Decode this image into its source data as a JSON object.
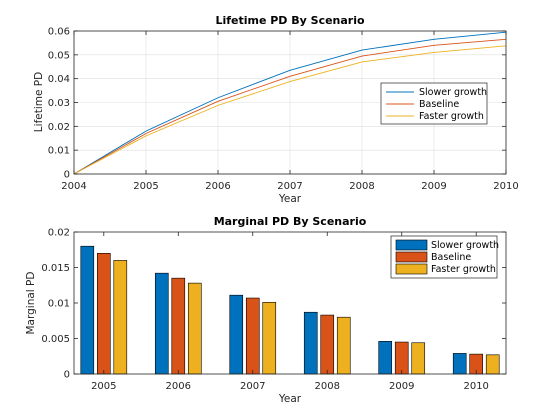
{
  "chart_data": [
    {
      "type": "line",
      "title": "Lifetime PD By Scenario",
      "xlabel": "Year",
      "ylabel": "Lifetime PD",
      "xlim": [
        2004,
        2010
      ],
      "ylim": [
        0,
        0.06
      ],
      "xticks": [
        "2004",
        "2005",
        "2006",
        "2007",
        "2008",
        "2009",
        "2010"
      ],
      "yticks": [
        "0",
        "0.01",
        "0.02",
        "0.03",
        "0.04",
        "0.05",
        "0.06"
      ],
      "grid": true,
      "legend_position": "right-center",
      "x": [
        2004,
        2005,
        2006,
        2007,
        2008,
        2009,
        2010
      ],
      "series": [
        {
          "name": "Slower growth",
          "color": "#0072BD",
          "values": [
            0,
            0.018,
            0.032,
            0.0435,
            0.052,
            0.0565,
            0.0595
          ]
        },
        {
          "name": "Baseline",
          "color": "#D95319",
          "values": [
            0,
            0.017,
            0.0305,
            0.041,
            0.0495,
            0.054,
            0.0565
          ]
        },
        {
          "name": "Faster growth",
          "color": "#EDB120",
          "values": [
            0,
            0.016,
            0.0288,
            0.0388,
            0.047,
            0.051,
            0.0538
          ]
        }
      ]
    },
    {
      "type": "bar",
      "title": "Marginal PD By Scenario",
      "xlabel": "Year",
      "ylabel": "Marginal PD",
      "categories": [
        "2005",
        "2006",
        "2007",
        "2008",
        "2009",
        "2010"
      ],
      "ylim": [
        0,
        0.02
      ],
      "yticks": [
        "0",
        "0.005",
        "0.01",
        "0.015",
        "0.02"
      ],
      "grid": false,
      "legend_position": "top-right",
      "series": [
        {
          "name": "Slower growth",
          "color": "#0072BD",
          "values": [
            0.018,
            0.0142,
            0.0111,
            0.0087,
            0.0046,
            0.0029
          ]
        },
        {
          "name": "Baseline",
          "color": "#D95319",
          "values": [
            0.017,
            0.0135,
            0.0107,
            0.0083,
            0.0045,
            0.0028
          ]
        },
        {
          "name": "Faster growth",
          "color": "#EDB120",
          "values": [
            0.016,
            0.0128,
            0.0101,
            0.008,
            0.0044,
            0.0027
          ]
        }
      ]
    }
  ]
}
